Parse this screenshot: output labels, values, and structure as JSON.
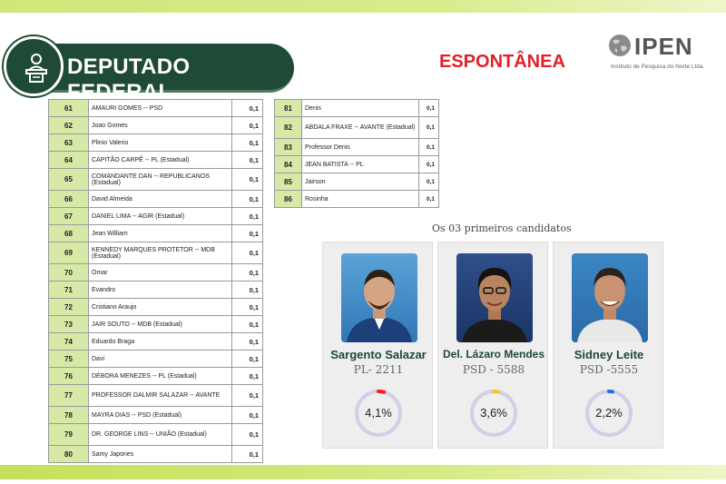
{
  "header": {
    "title": "DEPUTADO FEDERAL",
    "subtitle": "ESPONTÂNEA"
  },
  "logo": {
    "name": "IPEN",
    "tagline": "Instituto de Pesquisa do Norte Ltda."
  },
  "table_left": [
    {
      "rank": "61",
      "name": "AMAURI GOMES -- PSD",
      "pct": "0,1"
    },
    {
      "rank": "62",
      "name": "Joao Gomes",
      "pct": "0,1"
    },
    {
      "rank": "63",
      "name": "Plinio Valerio",
      "pct": "0,1"
    },
    {
      "rank": "64",
      "name": "CAPITÃO CARPÊ -- PL (Estadual)",
      "pct": "0,1"
    },
    {
      "rank": "65",
      "name": "COMANDANTE DAN -- REPUBLICANOS (Estadual)",
      "pct": "0,1"
    },
    {
      "rank": "66",
      "name": "David Almeida",
      "pct": "0,1"
    },
    {
      "rank": "67",
      "name": "DANIEL LIMA -- AGIR (Estadual)",
      "pct": "0,1"
    },
    {
      "rank": "68",
      "name": "Jean William",
      "pct": "0,1"
    },
    {
      "rank": "69",
      "name": "KENNEDY MARQUES PROTETOR -- MDB (Estadual)",
      "pct": "0,1"
    },
    {
      "rank": "70",
      "name": "Omar",
      "pct": "0,1"
    },
    {
      "rank": "71",
      "name": "Evandro",
      "pct": "0,1"
    },
    {
      "rank": "72",
      "name": "Cristiano Araujo",
      "pct": "0,1"
    },
    {
      "rank": "73",
      "name": "JAIR SOUTO -- MDB (Estadual)",
      "pct": "0,1"
    },
    {
      "rank": "74",
      "name": "Eduardo Braga",
      "pct": "0,1"
    },
    {
      "rank": "75",
      "name": "Davi",
      "pct": "0,1"
    },
    {
      "rank": "76",
      "name": "DÉBORA MENEZES -- PL (Estadual)",
      "pct": "0,1"
    },
    {
      "rank": "77",
      "name": "PROFESSOR DALMIR SALAZAR -- AVANTE",
      "pct": "0,1"
    },
    {
      "rank": "78",
      "name": "MAYRA DIAS -- PSD (Estadual)",
      "pct": "0,1"
    },
    {
      "rank": "79",
      "name": "DR. GEORGE LINS -- UNIÃO (Estadual)",
      "pct": "0,1"
    },
    {
      "rank": "80",
      "name": "Samy Japones",
      "pct": "0,1"
    }
  ],
  "table_right": [
    {
      "rank": "81",
      "name": "Denis",
      "pct": "0,1"
    },
    {
      "rank": "82",
      "name": "ABDALA FRAXE -- AVANTE (Estadual)",
      "pct": "0,1"
    },
    {
      "rank": "83",
      "name": "Professor Denis",
      "pct": "0,1"
    },
    {
      "rank": "84",
      "name": "JEAN BATISTA -- PL",
      "pct": "0,1"
    },
    {
      "rank": "85",
      "name": "Jairson",
      "pct": "0,1"
    },
    {
      "rank": "86",
      "name": "Rosinha",
      "pct": "0,1"
    }
  ],
  "top3": {
    "title": "Os 03 primeiros candidatos",
    "candidates": [
      {
        "name": "Sargento Salazar",
        "party": "PL- 2211",
        "pct_label": "4,1%",
        "gauge_fraction": 0.041,
        "gauge_color": "#ff1a1a"
      },
      {
        "name": "Del. Lázaro Mendes",
        "party": "PSD - 5588",
        "pct_label": "3,6%",
        "gauge_fraction": 0.036,
        "gauge_color": "#f6c623"
      },
      {
        "name": "Sidney Leite",
        "party": "PSD  -5555",
        "pct_label": "2,2%",
        "gauge_fraction": 0.022,
        "gauge_color": "#1f6fd6"
      }
    ]
  },
  "colors": {
    "brand_green": "#1f4a36",
    "accent_red": "#e0202a",
    "table_rank_bg": "#d7e9a6",
    "gauge_track": "#d3cde6"
  }
}
